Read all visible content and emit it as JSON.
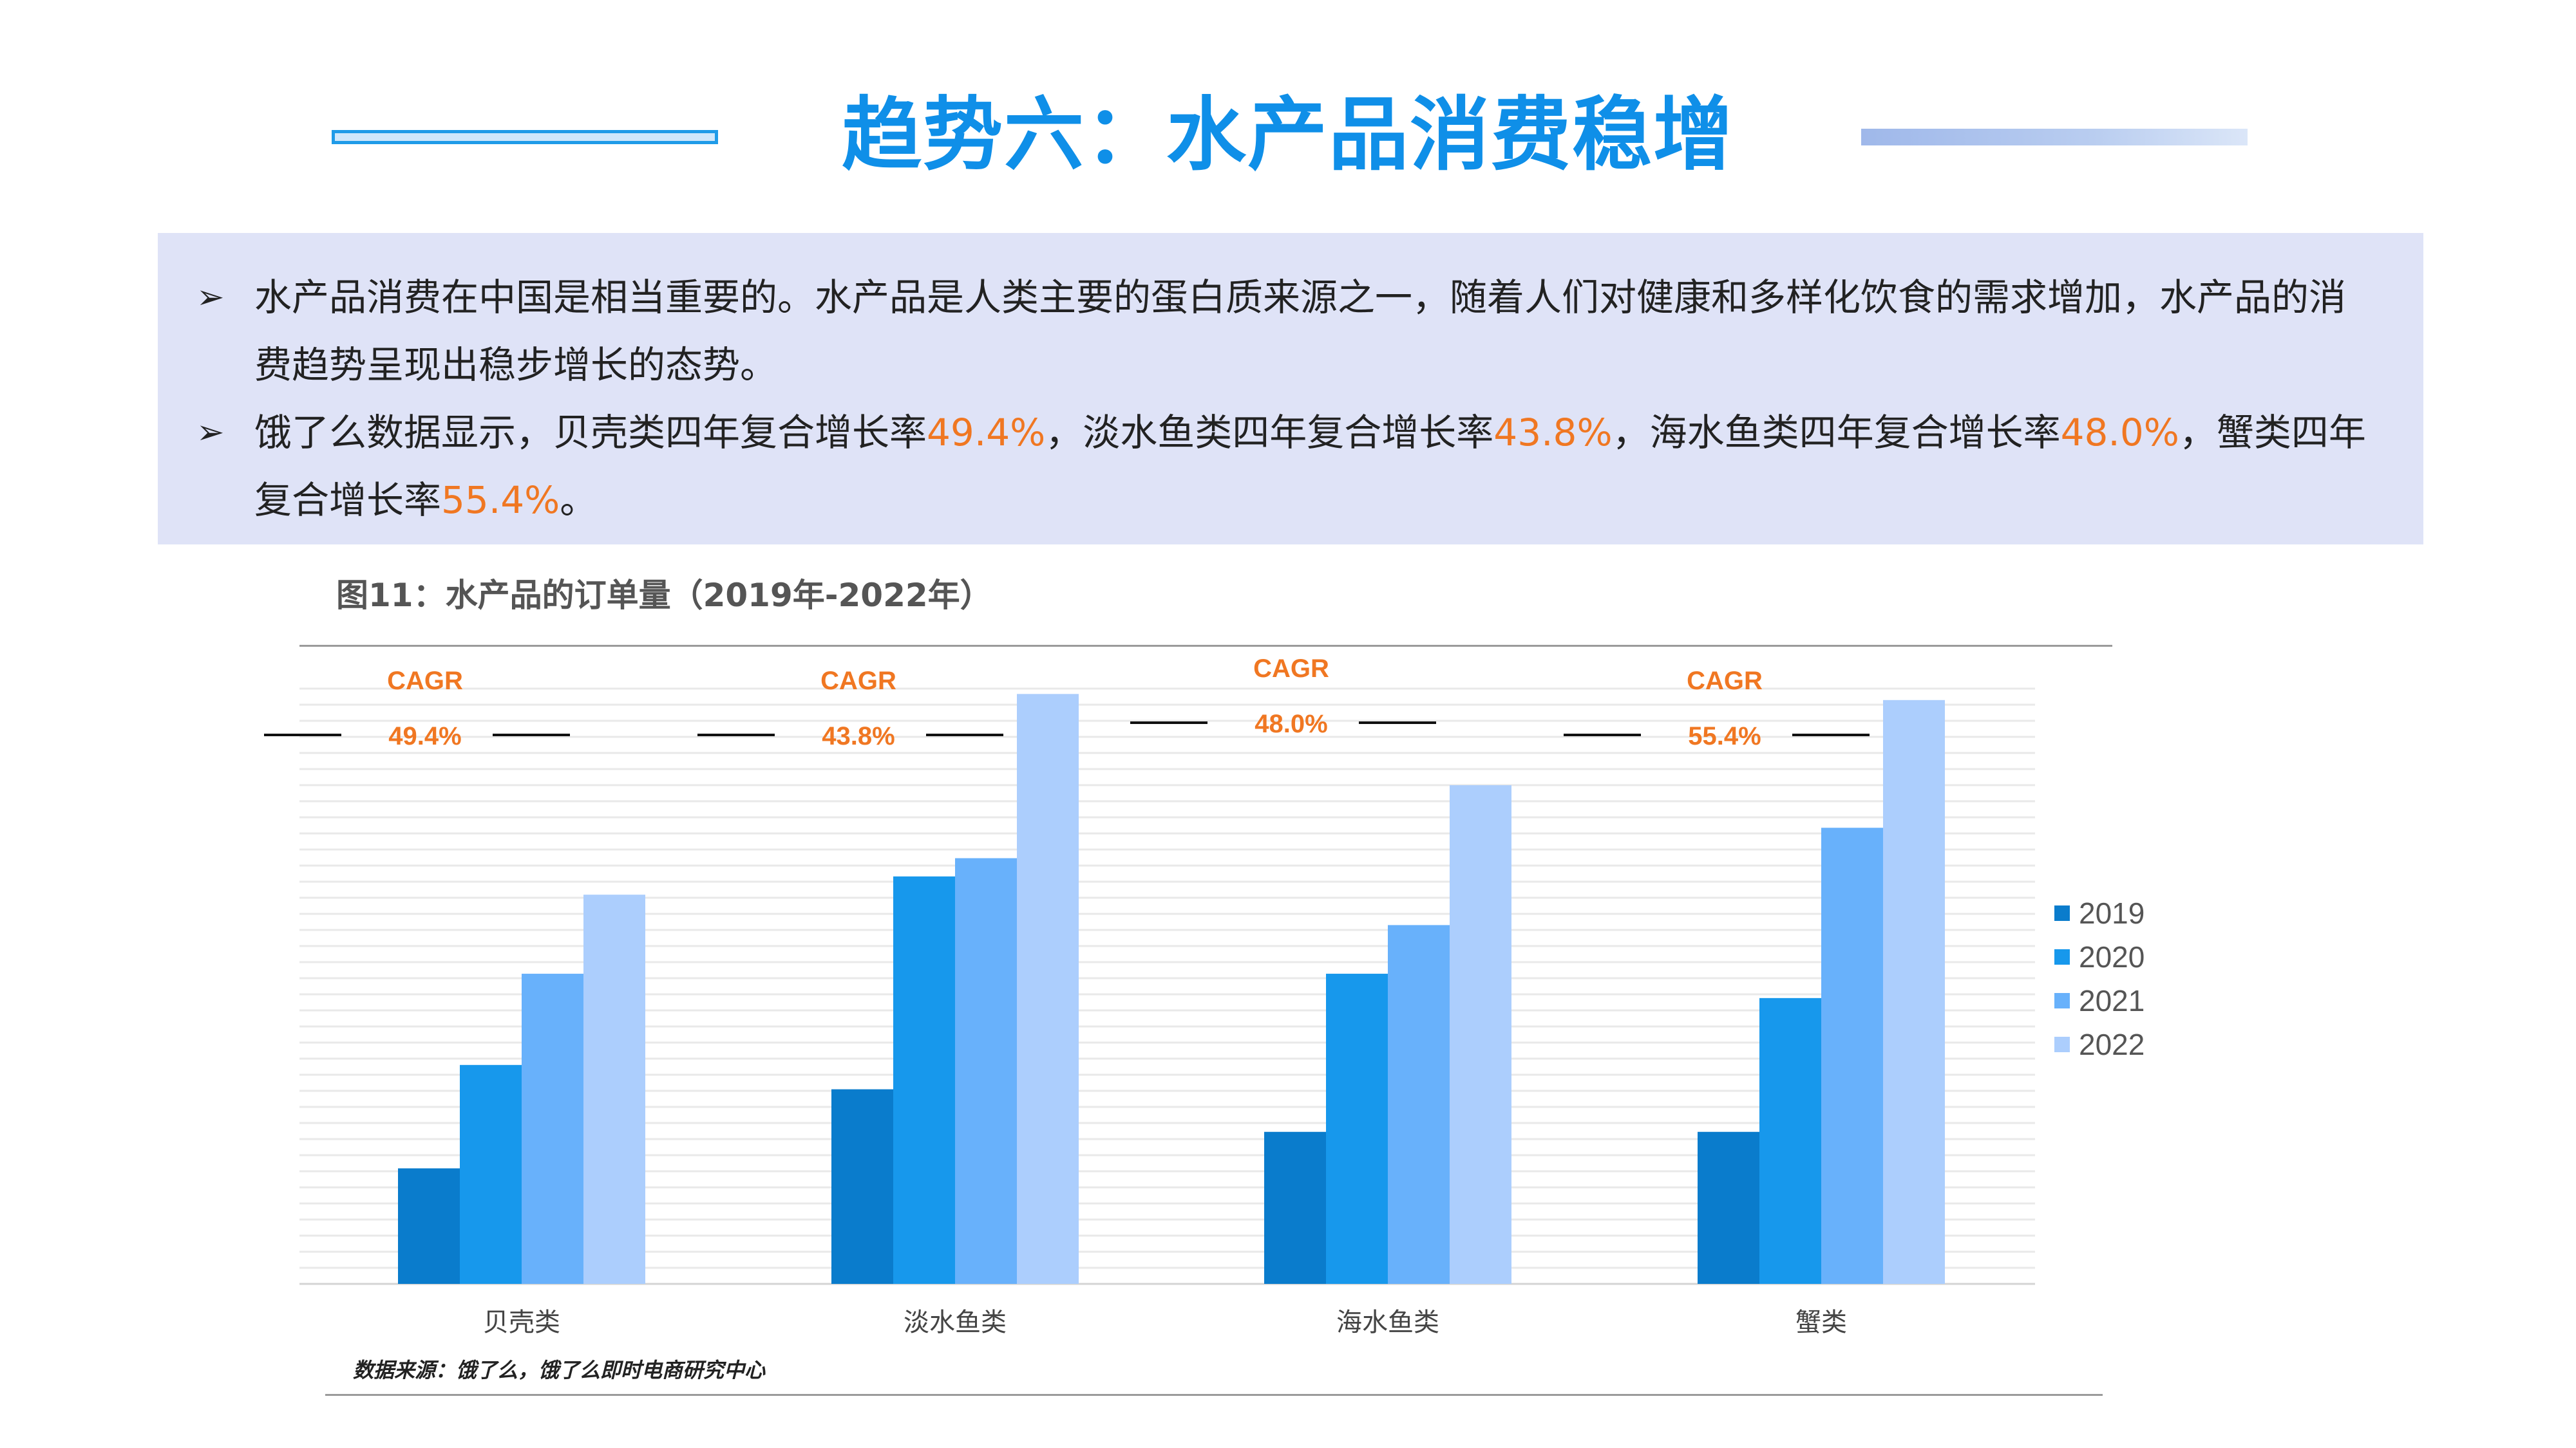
{
  "page": {
    "title": "趋势六：水产品消费稳增",
    "bullets": [
      {
        "icon": "➢",
        "segments": [
          {
            "text": "水产品消费在中国是相当重要的。水产品是人类主要的蛋白质来源之一，随着人们对健康和多样化饮食的需求增加，水产品的消费趋势呈现出稳步增长的态势。",
            "accent": false
          }
        ]
      },
      {
        "icon": "➢",
        "segments": [
          {
            "text": "饿了么数据显示，贝壳类四年复合增长率",
            "accent": false
          },
          {
            "text": "49.4%",
            "accent": true
          },
          {
            "text": "，淡水鱼类四年复合增长率",
            "accent": false
          },
          {
            "text": "43.8%",
            "accent": true
          },
          {
            "text": "，海水鱼类四年复合增长率",
            "accent": false
          },
          {
            "text": "48.0%",
            "accent": true
          },
          {
            "text": "，蟹类四年复合增长率",
            "accent": false
          },
          {
            "text": "55.4%",
            "accent": true
          },
          {
            "text": "。",
            "accent": false
          }
        ]
      }
    ],
    "figure_title": "图11：水产品的订单量（2019年-2022年）",
    "source": "数据来源：饿了么，饿了么即时电商研究中心"
  },
  "colors": {
    "title": "#0f8fe8",
    "accent": "#f07722",
    "series": [
      "#0a7ccc",
      "#1798ec",
      "#68b1fb",
      "#accefd"
    ]
  },
  "chart_data": {
    "type": "bar",
    "title": "图11：水产品的订单量（2019年-2022年）",
    "xlabel": "",
    "ylabel": "",
    "ylim": [
      0,
      100
    ],
    "grid": true,
    "legend_position": "right",
    "categories": [
      "贝壳类",
      "淡水鱼类",
      "海水鱼类",
      "蟹类"
    ],
    "series": [
      {
        "name": "2019",
        "values": [
          19,
          32,
          25,
          25
        ]
      },
      {
        "name": "2020",
        "values": [
          36,
          67,
          51,
          47
        ]
      },
      {
        "name": "2021",
        "values": [
          51,
          70,
          59,
          75
        ]
      },
      {
        "name": "2022",
        "values": [
          64,
          97,
          82,
          96
        ]
      }
    ],
    "annotations": [
      {
        "label": "CAGR",
        "value": "49.4%"
      },
      {
        "label": "CAGR",
        "value": "43.8%"
      },
      {
        "label": "CAGR",
        "value": "48.0%"
      },
      {
        "label": "CAGR",
        "value": "55.4%"
      }
    ]
  }
}
